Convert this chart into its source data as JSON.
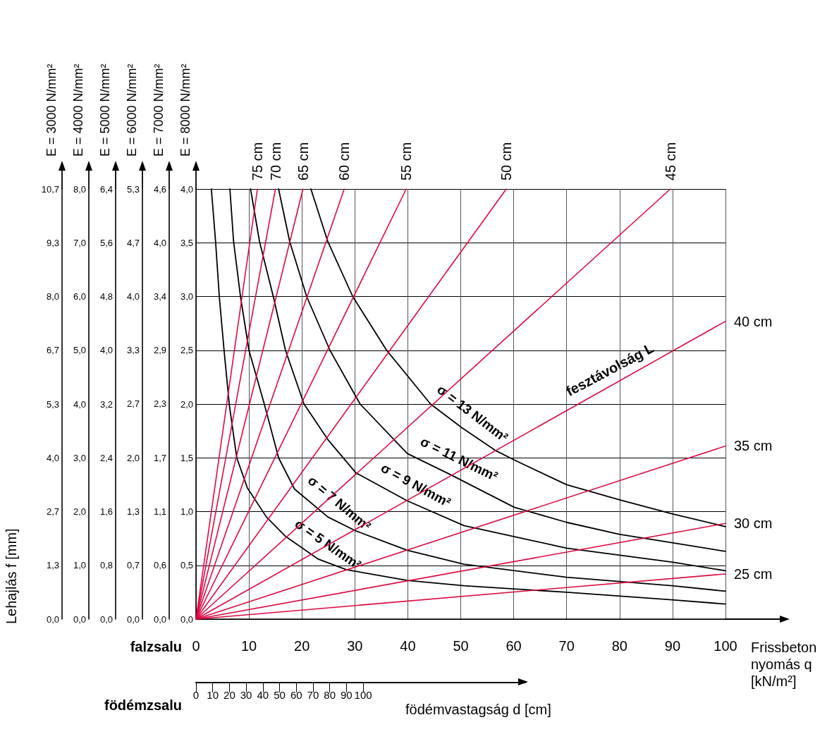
{
  "chart_data": {
    "type": "line",
    "xlabel": "Frissbeton nyomás q [kN/m²]",
    "x2label": "födémvastagság d [cm]",
    "ylabel": "E = 8000 N/mm²",
    "y2label": "E = 7000 N/mm²",
    "y3label": "E = 6000 N/mm²",
    "annotations": [
      "Lehajlás f [mm]",
      "falzsalu",
      "födémzsalu",
      "fesztávolság L",
      "E = 5000 N/mm²",
      "0,0",
      "0,8",
      "1,6",
      "2,4",
      "3,2",
      "4,0",
      "4,8",
      "5,6",
      "6,4",
      "E = 4000 N/mm²",
      "0,0",
      "1,0",
      "2,0",
      "3,0",
      "4,0",
      "5,0",
      "6,0",
      "7,0",
      "8,0",
      "E = 3000 N/mm²",
      "0,0",
      "1,3",
      "2,7",
      "4,0",
      "5,3",
      "6,7",
      "8,0",
      "9,3",
      "10,7"
    ],
    "xlim": [
      0,
      100
    ],
    "xticks": [
      0,
      10,
      20,
      30,
      40,
      50,
      60,
      70,
      80,
      90,
      100
    ],
    "x2lim": [
      0,
      197
    ],
    "x2ticks": [
      0,
      10,
      20,
      30,
      40,
      50,
      60,
      70,
      80,
      90,
      100
    ],
    "ylim": [
      0,
      4
    ],
    "yticks": [
      {
        "value": 0,
        "label": "0,0"
      },
      {
        "value": 0.5,
        "label": "0,5"
      },
      {
        "value": 1,
        "label": "1,0"
      },
      {
        "value": 1.5,
        "label": "1,5"
      },
      {
        "value": 2,
        "label": "2,0"
      },
      {
        "value": 2.5,
        "label": "2,5"
      },
      {
        "value": 3,
        "label": "3,0"
      },
      {
        "value": 3.5,
        "label": "3,5"
      },
      {
        "value": 4,
        "label": "4,0"
      }
    ],
    "y2lim": [
      0,
      4.571
    ],
    "y2ticks": [
      {
        "value": 0,
        "label": "0,0"
      },
      {
        "value": 0.571,
        "label": "0,6"
      },
      {
        "value": 1.143,
        "label": "1,1"
      },
      {
        "value": 1.714,
        "label": "1,7"
      },
      {
        "value": 2.286,
        "label": "2,3"
      },
      {
        "value": 2.857,
        "label": "2,9"
      },
      {
        "value": 3.429,
        "label": "3,4"
      },
      {
        "value": 4,
        "label": "4,0"
      },
      {
        "value": 4.571,
        "label": "4,6"
      }
    ],
    "y3lim": [
      0,
      5.333
    ],
    "y3ticks": [
      {
        "value": 0,
        "label": "0,0"
      },
      {
        "value": 0.667,
        "label": "0,7"
      },
      {
        "value": 1.333,
        "label": "1,3"
      },
      {
        "value": 2,
        "label": "2,0"
      },
      {
        "value": 2.667,
        "label": "2,7"
      },
      {
        "value": 3.333,
        "label": "3,3"
      },
      {
        "value": 4,
        "label": "4,0"
      },
      {
        "value": 4.667,
        "label": "4,7"
      },
      {
        "value": 5.333,
        "label": "5,3"
      }
    ],
    "grid": true,
    "legend": false,
    "series": [
      {
        "name": "σ = 5 N/mm²",
        "color": "#000000",
        "x": [
          2.9,
          3.7,
          4.4,
          5.3,
          6.3,
          7.7,
          9.7,
          13.3,
          16.9,
          23.0,
          28.4,
          39.9,
          50.6,
          70.0,
          89.9,
          100
        ],
        "values": [
          4.0,
          3.51,
          3.0,
          2.5,
          1.99,
          1.5,
          1.22,
          0.95,
          0.77,
          0.56,
          0.46,
          0.36,
          0.31,
          0.25,
          0.18,
          0.14
        ]
      },
      {
        "name": "σ = 7 N/mm²",
        "color": "#000000",
        "x": [
          6.4,
          7.1,
          8.4,
          10.0,
          12.9,
          15.6,
          18.6,
          24.9,
          30.2,
          39.9,
          50.6,
          70.0,
          89.9,
          100
        ],
        "values": [
          4.0,
          3.51,
          3.0,
          2.5,
          2.0,
          1.5,
          1.21,
          0.95,
          0.82,
          0.64,
          0.51,
          0.39,
          0.31,
          0.26
        ]
      },
      {
        "name": "σ = 9 N/mm²",
        "color": "#000000",
        "x": [
          10.3,
          12.0,
          14.6,
          16.9,
          20.4,
          24.9,
          30.2,
          39.9,
          50.6,
          70.0,
          89.9,
          100
        ],
        "values": [
          4.0,
          3.51,
          3.0,
          2.5,
          2.0,
          1.67,
          1.36,
          1.1,
          0.87,
          0.66,
          0.53,
          0.45
        ]
      },
      {
        "name": "σ = 11 N/mm²",
        "color": "#000000",
        "x": [
          15.6,
          17.7,
          20.9,
          25.3,
          31.0,
          39.9,
          48.2,
          60.1,
          70.0,
          79.9,
          89.9,
          100
        ],
        "values": [
          4.0,
          3.51,
          3.0,
          2.5,
          2.0,
          1.54,
          1.34,
          1.04,
          0.9,
          0.79,
          0.71,
          0.63
        ]
      },
      {
        "name": "σ = 13 N/mm²",
        "color": "#000000",
        "x": [
          21.7,
          24.9,
          29.6,
          36.0,
          44.3,
          50.2,
          56.5,
          60.1,
          70.0,
          79.9,
          89.9,
          100
        ],
        "values": [
          4.0,
          3.51,
          3.0,
          2.5,
          2.0,
          1.78,
          1.57,
          1.48,
          1.25,
          1.11,
          0.98,
          0.86
        ]
      },
      {
        "name": "75 cm",
        "color": "#dc0a40",
        "x": [
          0,
          11.6
        ],
        "values": [
          0,
          4.0
        ]
      },
      {
        "name": "70 cm",
        "color": "#dc0a40",
        "x": [
          0,
          15.0
        ],
        "values": [
          0,
          4.0
        ]
      },
      {
        "name": "65 cm",
        "color": "#dc0a40",
        "x": [
          0,
          20.2
        ],
        "values": [
          0,
          4.0
        ]
      },
      {
        "name": "60 cm",
        "color": "#dc0a40",
        "x": [
          0,
          28.0
        ],
        "values": [
          0,
          4.0
        ]
      },
      {
        "name": "55 cm",
        "color": "#dc0a40",
        "x": [
          0,
          39.7
        ],
        "values": [
          0,
          4.0
        ]
      },
      {
        "name": "50 cm",
        "color": "#dc0a40",
        "x": [
          0,
          58.6
        ],
        "values": [
          0,
          4.0
        ]
      },
      {
        "name": "45 cm",
        "color": "#dc0a40",
        "x": [
          0,
          89.6
        ],
        "values": [
          0,
          4.0
        ]
      },
      {
        "name": "40 cm",
        "color": "#dc0a40",
        "x": [
          0,
          100
        ],
        "values": [
          0,
          2.77
        ]
      },
      {
        "name": "35 cm",
        "color": "#dc0a40",
        "x": [
          0,
          100
        ],
        "values": [
          0,
          1.61
        ]
      },
      {
        "name": "30 cm",
        "color": "#dc0a40",
        "x": [
          0,
          100
        ],
        "values": [
          0,
          0.89
        ]
      },
      {
        "name": "25 cm",
        "color": "#dc0a40",
        "x": [
          0,
          100
        ],
        "values": [
          0,
          0.42
        ]
      }
    ]
  }
}
